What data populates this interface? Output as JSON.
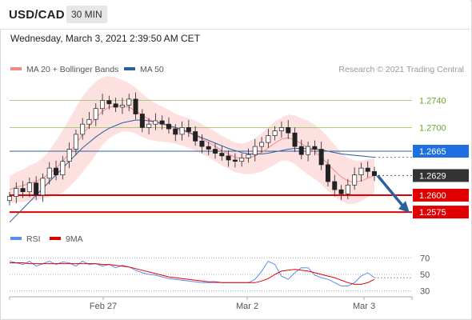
{
  "header": {
    "pair": "USD/CAD",
    "timeframe": "30 MIN",
    "datetime": "Wednesday, March 3, 2021 2:39:50 AM CET"
  },
  "chart_data": [
    {
      "type": "line",
      "legend": [
        {
          "name": "MA 20 + Bollinger Bands",
          "color": "#f08a8a"
        },
        {
          "name": "MA 50",
          "color": "#2c5f9e"
        }
      ],
      "credit": "Research © 2021 Trading Central",
      "x_ticks": [
        "Feb 27",
        "Mar 2",
        "Mar 3"
      ],
      "ylim": [
        1.2555,
        1.2775
      ],
      "levels": [
        {
          "value": 1.274,
          "label": "1.2740",
          "kind": "resistance-light",
          "color": "#8cc152"
        },
        {
          "value": 1.27,
          "label": "1.2700",
          "kind": "resistance-light",
          "color": "#8cc152"
        },
        {
          "value": 1.2665,
          "label": "1.2665",
          "kind": "ma-level",
          "color": "#1e6fe0"
        },
        {
          "value": 1.2629,
          "label": "1.2629",
          "kind": "last-price",
          "color": "#333333"
        },
        {
          "value": 1.26,
          "label": "1.2600",
          "kind": "support",
          "color": "#e00000"
        },
        {
          "value": 1.2575,
          "label": "1.2575",
          "kind": "support",
          "color": "#e00000"
        }
      ],
      "price_path": [
        1.2598,
        1.261,
        1.2605,
        1.2618,
        1.26,
        1.2625,
        1.264,
        1.263,
        1.265,
        1.2668,
        1.269,
        1.2705,
        1.2712,
        1.2728,
        1.274,
        1.2735,
        1.273,
        1.2733,
        1.2742,
        1.272,
        1.27,
        1.2705,
        1.271,
        1.2705,
        1.2698,
        1.269,
        1.27,
        1.2694,
        1.268,
        1.2672,
        1.2668,
        1.2662,
        1.2658,
        1.2652,
        1.265,
        1.2655,
        1.266,
        1.2672,
        1.2678,
        1.2688,
        1.2695,
        1.27,
        1.2692,
        1.2672,
        1.266,
        1.2672,
        1.2668,
        1.2645,
        1.262,
        1.2608,
        1.2602,
        1.2615,
        1.263,
        1.264,
        1.2635,
        1.2629
      ],
      "ma20_path": [
        1.2608,
        1.2612,
        1.2614,
        1.2618,
        1.262,
        1.2625,
        1.2632,
        1.264,
        1.265,
        1.2662,
        1.2676,
        1.269,
        1.2702,
        1.2714,
        1.2724,
        1.273,
        1.2732,
        1.2732,
        1.273,
        1.2725,
        1.2718,
        1.2712,
        1.2708,
        1.2705,
        1.2702,
        1.2698,
        1.2695,
        1.2692,
        1.2688,
        1.2683,
        1.2678,
        1.2672,
        1.2666,
        1.2661,
        1.2656,
        1.2654,
        1.2655,
        1.2658,
        1.2663,
        1.267,
        1.2677,
        1.2683,
        1.2685,
        1.2682,
        1.2676,
        1.267,
        1.2664,
        1.2656,
        1.2646,
        1.2636,
        1.2627,
        1.2621,
        1.2619,
        1.2621,
        1.2625,
        1.2629
      ],
      "ma50_path": [
        1.256,
        1.257,
        1.258,
        1.259,
        1.26,
        1.261,
        1.262,
        1.263,
        1.264,
        1.265,
        1.266,
        1.267,
        1.2678,
        1.2686,
        1.2693,
        1.2699,
        1.2703,
        1.2707,
        1.2709,
        1.2711,
        1.2711,
        1.271,
        1.2708,
        1.2706,
        1.2703,
        1.27,
        1.2697,
        1.2693,
        1.2689,
        1.2685,
        1.2681,
        1.2677,
        1.2673,
        1.2669,
        1.2666,
        1.2663,
        1.2661,
        1.2661,
        1.2661,
        1.2662,
        1.2664,
        1.2666,
        1.2668,
        1.2669,
        1.2669,
        1.2669,
        1.2668,
        1.2667,
        1.2665,
        1.2663,
        1.2661,
        1.266,
        1.2659,
        1.2658,
        1.2657,
        1.2656
      ],
      "band_width_path": [
        0.002,
        0.0022,
        0.0024,
        0.0026,
        0.0028,
        0.003,
        0.0034,
        0.004,
        0.0046,
        0.005,
        0.0054,
        0.0056,
        0.0056,
        0.0054,
        0.005,
        0.0046,
        0.0042,
        0.0038,
        0.0036,
        0.0034,
        0.0032,
        0.003,
        0.0028,
        0.0026,
        0.0024,
        0.0022,
        0.0022,
        0.0022,
        0.0022,
        0.0022,
        0.0022,
        0.0022,
        0.0022,
        0.0022,
        0.0022,
        0.0022,
        0.0024,
        0.0026,
        0.0028,
        0.003,
        0.0032,
        0.0032,
        0.0034,
        0.0036,
        0.0038,
        0.004,
        0.004,
        0.004,
        0.004,
        0.0038,
        0.0036,
        0.0034,
        0.0032,
        0.003,
        0.0028,
        0.0026
      ],
      "forecast": {
        "from": 1.2629,
        "to": 1.2575,
        "direction": "down",
        "color": "#2c5f9e"
      }
    },
    {
      "type": "line",
      "legend": [
        {
          "name": "RSI",
          "color": "#5b8def"
        },
        {
          "name": "9MA",
          "color": "#e00000"
        }
      ],
      "ylim": [
        20,
        80
      ],
      "y_ticks": [
        "70",
        "50",
        "30"
      ],
      "rsi": [
        66,
        64,
        62,
        66,
        60,
        63,
        66,
        62,
        65,
        64,
        60,
        66,
        62,
        63,
        60,
        62,
        58,
        61,
        59,
        55,
        52,
        50,
        49,
        47,
        45,
        44,
        43,
        42,
        41,
        40,
        40,
        40,
        40,
        40,
        40,
        40,
        40,
        44,
        54,
        66,
        62,
        48,
        44,
        52,
        58,
        58,
        49,
        46,
        44,
        40,
        36,
        36,
        40,
        48,
        52,
        46
      ],
      "ma9": [
        64,
        64,
        64,
        63,
        63,
        63,
        63,
        63,
        63,
        63,
        63,
        63,
        63,
        63,
        62,
        62,
        61,
        60,
        59,
        57,
        55,
        53,
        51,
        49,
        47,
        46,
        45,
        44,
        43,
        42,
        41,
        41,
        40,
        40,
        40,
        40,
        40,
        40,
        42,
        45,
        50,
        54,
        55,
        56,
        55,
        54,
        52,
        50,
        48,
        46,
        43,
        40,
        38,
        38,
        40,
        44
      ]
    }
  ]
}
